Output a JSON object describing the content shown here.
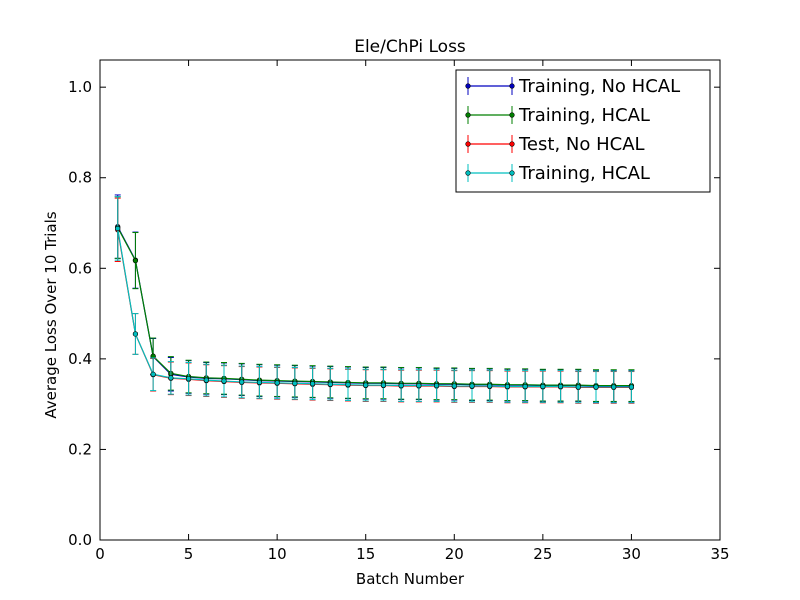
{
  "chart_data": {
    "type": "line",
    "title": "Ele/ChPi Loss",
    "xlabel": "Batch Number",
    "ylabel": "Average Loss Over 10 Trials",
    "xlim": [
      0,
      35
    ],
    "ylim": [
      0.0,
      1.06
    ],
    "xticks": [
      0,
      5,
      10,
      15,
      20,
      25,
      30,
      35
    ],
    "xtick_labels": [
      "0",
      "5",
      "10",
      "15",
      "20",
      "25",
      "30",
      "35"
    ],
    "yticks": [
      0.0,
      0.2,
      0.4,
      0.6,
      0.8,
      1.0
    ],
    "ytick_labels": [
      "0.0",
      "0.2",
      "0.4",
      "0.6",
      "0.8",
      "1.0"
    ],
    "grid": false,
    "legend_position": "top-right",
    "x": [
      1,
      2,
      3,
      4,
      5,
      6,
      7,
      8,
      9,
      10,
      11,
      12,
      13,
      14,
      15,
      16,
      17,
      18,
      19,
      20,
      21,
      22,
      23,
      24,
      25,
      26,
      27,
      28,
      29,
      30
    ],
    "series": [
      {
        "name": "Training, No HCAL",
        "color": "#0000bf",
        "values": [
          0.692,
          0.618,
          0.405,
          0.366,
          0.36,
          0.357,
          0.356,
          0.354,
          0.352,
          0.351,
          0.35,
          0.349,
          0.348,
          0.347,
          0.346,
          0.346,
          0.345,
          0.345,
          0.344,
          0.344,
          0.343,
          0.343,
          0.342,
          0.342,
          0.341,
          0.341,
          0.341,
          0.34,
          0.34,
          0.34
        ],
        "errors": [
          0.07,
          0.062,
          0.04,
          0.037,
          0.036,
          0.035,
          0.035,
          0.035,
          0.035,
          0.035,
          0.035,
          0.035,
          0.035,
          0.035,
          0.035,
          0.035,
          0.035,
          0.035,
          0.035,
          0.035,
          0.035,
          0.035,
          0.035,
          0.035,
          0.035,
          0.035,
          0.035,
          0.035,
          0.035,
          0.035
        ]
      },
      {
        "name": "Training, HCAL",
        "color": "#007f00",
        "values": [
          0.69,
          0.617,
          0.406,
          0.368,
          0.361,
          0.358,
          0.357,
          0.355,
          0.353,
          0.352,
          0.351,
          0.35,
          0.349,
          0.348,
          0.347,
          0.347,
          0.346,
          0.346,
          0.345,
          0.345,
          0.344,
          0.344,
          0.343,
          0.343,
          0.342,
          0.342,
          0.342,
          0.341,
          0.341,
          0.341
        ],
        "errors": [
          0.068,
          0.062,
          0.04,
          0.037,
          0.036,
          0.035,
          0.035,
          0.035,
          0.035,
          0.035,
          0.035,
          0.035,
          0.035,
          0.035,
          0.035,
          0.035,
          0.035,
          0.035,
          0.035,
          0.035,
          0.035,
          0.035,
          0.035,
          0.035,
          0.035,
          0.035,
          0.035,
          0.035,
          0.035,
          0.035
        ]
      },
      {
        "name": "Test, No HCAL",
        "color": "#ff0000",
        "values": [
          0.685,
          0.455,
          0.365,
          0.357,
          0.355,
          0.352,
          0.35,
          0.348,
          0.347,
          0.346,
          0.345,
          0.344,
          0.343,
          0.342,
          0.341,
          0.341,
          0.34,
          0.34,
          0.34,
          0.339,
          0.339,
          0.339,
          0.338,
          0.338,
          0.338,
          0.338,
          0.337,
          0.337,
          0.337,
          0.337
        ],
        "errors": [
          0.07,
          0.045,
          0.036,
          0.036,
          0.036,
          0.035,
          0.035,
          0.035,
          0.035,
          0.035,
          0.035,
          0.035,
          0.035,
          0.035,
          0.035,
          0.035,
          0.035,
          0.035,
          0.035,
          0.035,
          0.035,
          0.035,
          0.035,
          0.035,
          0.035,
          0.035,
          0.035,
          0.035,
          0.035,
          0.035
        ]
      },
      {
        "name": "Training, HCAL",
        "color": "#00bfbf",
        "values": [
          0.688,
          0.455,
          0.366,
          0.358,
          0.356,
          0.353,
          0.351,
          0.349,
          0.348,
          0.347,
          0.346,
          0.345,
          0.344,
          0.343,
          0.342,
          0.342,
          0.341,
          0.341,
          0.341,
          0.34,
          0.34,
          0.34,
          0.339,
          0.339,
          0.339,
          0.339,
          0.338,
          0.338,
          0.338,
          0.338
        ],
        "errors": [
          0.07,
          0.045,
          0.036,
          0.036,
          0.036,
          0.035,
          0.035,
          0.035,
          0.035,
          0.035,
          0.035,
          0.035,
          0.035,
          0.035,
          0.035,
          0.035,
          0.035,
          0.035,
          0.035,
          0.035,
          0.035,
          0.035,
          0.035,
          0.035,
          0.035,
          0.035,
          0.035,
          0.035,
          0.035,
          0.035
        ]
      }
    ]
  }
}
